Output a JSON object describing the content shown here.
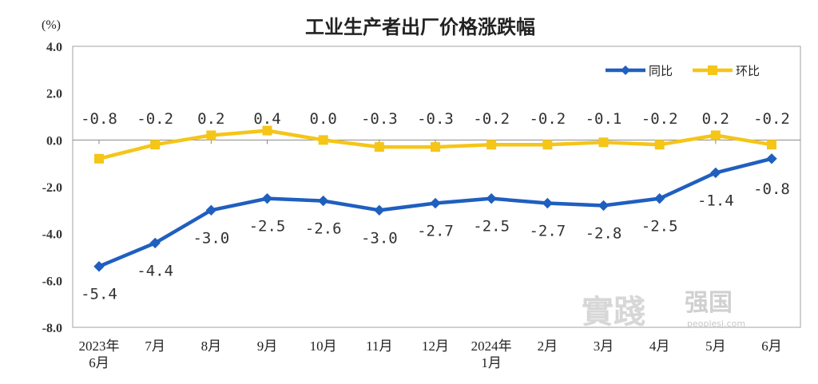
{
  "chart_data": {
    "type": "line",
    "title": "工业生产者出厂价格涨跌幅",
    "ylabel": "(%)",
    "ylim": [
      -8.0,
      4.0
    ],
    "yticks": [
      "4.0",
      "2.0",
      "0.0",
      "-2.0",
      "-4.0",
      "-6.0",
      "-8.0"
    ],
    "categories": [
      [
        "2023年",
        "6月"
      ],
      [
        "7月"
      ],
      [
        "8月"
      ],
      [
        "9月"
      ],
      [
        "10月"
      ],
      [
        "11月"
      ],
      [
        "12月"
      ],
      [
        "2024年",
        "1月"
      ],
      [
        "2月"
      ],
      [
        "3月"
      ],
      [
        "4月"
      ],
      [
        "5月"
      ],
      [
        "6月"
      ]
    ],
    "series": [
      {
        "name": "同比",
        "color": "#1f5fbf",
        "marker": "diamond",
        "values": [
          -5.4,
          -4.4,
          -3.0,
          -2.5,
          -2.6,
          -3.0,
          -2.7,
          -2.5,
          -2.7,
          -2.8,
          -2.5,
          -1.4,
          -0.8
        ],
        "labels": [
          "-5.4",
          "-4.4",
          "-3.0",
          "-2.5",
          "-2.6",
          "-3.0",
          "-2.7",
          "-2.5",
          "-2.7",
          "-2.8",
          "-2.5",
          "-1.4",
          "-0.8"
        ]
      },
      {
        "name": "环比",
        "color": "#f5c518",
        "marker": "square",
        "values": [
          -0.8,
          -0.2,
          0.2,
          0.4,
          0.0,
          -0.3,
          -0.3,
          -0.2,
          -0.2,
          -0.1,
          -0.2,
          0.2,
          -0.2
        ],
        "labels": [
          "-0.8",
          "-0.2",
          "0.2",
          "0.4",
          "0.0",
          "-0.3",
          "-0.3",
          "-0.2",
          "-0.2",
          "-0.1",
          "-0.2",
          "0.2",
          "-0.2"
        ]
      }
    ],
    "legend_position": "top-right",
    "grid": false
  },
  "watermark": {
    "big": "實踐",
    "mid": "强国",
    "small": "peoplesj.com"
  }
}
